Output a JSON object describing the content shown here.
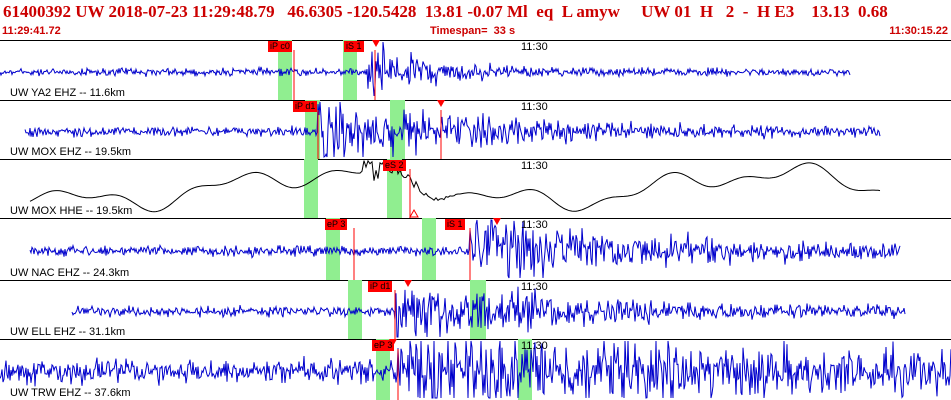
{
  "header": {
    "title": "61400392 UW 2018-07-23 11:29:48.79   46.6305 -120.5428  13.81 -0.07 Ml  eq  L amyw     UW 01  H   2  -  H E3    13.13  0.68",
    "start_time": "11:29:41.72",
    "timespan": "Timespan=  33 s",
    "end_time": "11:30:15.22"
  },
  "colors": {
    "trace_primary": "#0000cc",
    "trace_broadband": "#000000",
    "pick": "#ff0000",
    "window": "#90ee90",
    "header_text": "#cc0000"
  },
  "panels": [
    {
      "label": "UW YA2 EHZ -- 11.6km",
      "tick": "11:30",
      "picks": [
        "iP c0",
        "iS 1"
      ],
      "color": "primary"
    },
    {
      "label": "UW MOX EHZ -- 19.5km",
      "tick": "11:30",
      "picks": [
        "iP d1"
      ],
      "color": "primary"
    },
    {
      "label": "UW MOX HHE -- 19.5km",
      "tick": "11:30",
      "picks": [
        "eS 2"
      ],
      "color": "broadband"
    },
    {
      "label": "UW NAC EHZ -- 24.3km",
      "tick": "11:30",
      "picks": [
        "eP 3",
        "iS 1"
      ],
      "color": "primary"
    },
    {
      "label": "UW ELL EHZ -- 31.1km",
      "tick": "11:30",
      "picks": [
        "iP d1"
      ],
      "color": "primary"
    },
    {
      "label": "UW TRW EHZ -- 37.6km",
      "tick": "11:30",
      "picks": [
        "eP 3"
      ],
      "color": "primary"
    }
  ]
}
